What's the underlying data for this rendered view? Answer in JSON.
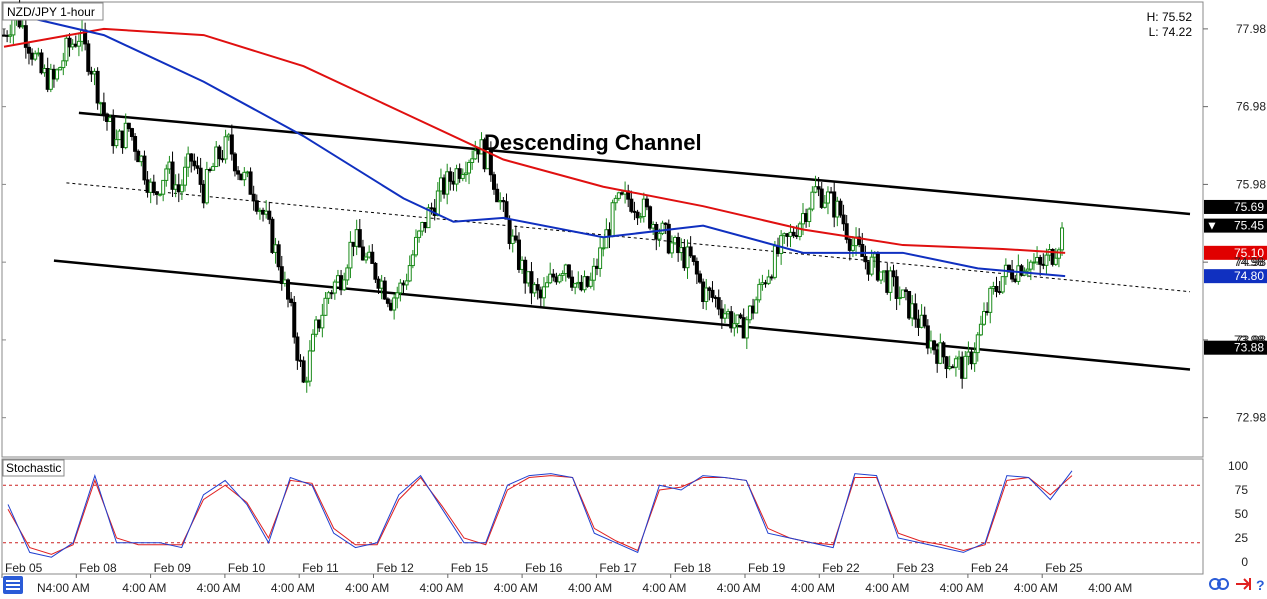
{
  "chart_data": {
    "type": "candlestick",
    "title": "NZD/JPY 1-hour",
    "high_label": "H: 75.52",
    "low_label": "L: 74.22",
    "annotation": "Descending Channel",
    "ylim": [
      72.5,
      78.3
    ],
    "y_ticks": [
      "77.98",
      "76.98",
      "75.98",
      "74.98",
      "73.98",
      "72.98"
    ],
    "x_date_labels": [
      "Feb 05",
      "Feb 08",
      "Feb 09",
      "Feb 10",
      "Feb 11",
      "Feb 12",
      "Feb 15",
      "Feb 16",
      "Feb 17",
      "Feb 18",
      "Feb 19",
      "Feb 22",
      "Feb 23",
      "Feb 24",
      "Feb 25"
    ],
    "x_time_label": "4:00 AM",
    "x_first_time_label": "N4:00 AM",
    "price_series": [
      {
        "x": 0,
        "y": 77.9
      },
      {
        "x": 1,
        "y": 78.2
      },
      {
        "x": 2,
        "y": 77.8
      },
      {
        "x": 3,
        "y": 77.4
      },
      {
        "x": 4,
        "y": 77.3
      },
      {
        "x": 5,
        "y": 77.7
      },
      {
        "x": 6,
        "y": 77.9
      },
      {
        "x": 7,
        "y": 77.5
      },
      {
        "x": 8,
        "y": 76.9
      },
      {
        "x": 9,
        "y": 76.5
      },
      {
        "x": 10,
        "y": 76.7
      },
      {
        "x": 11,
        "y": 76.3
      },
      {
        "x": 12,
        "y": 75.8
      },
      {
        "x": 13,
        "y": 76.2
      },
      {
        "x": 14,
        "y": 75.9
      },
      {
        "x": 15,
        "y": 76.3
      },
      {
        "x": 16,
        "y": 75.9
      },
      {
        "x": 17,
        "y": 76.3
      },
      {
        "x": 18,
        "y": 76.5
      },
      {
        "x": 19,
        "y": 76.1
      },
      {
        "x": 20,
        "y": 75.9
      },
      {
        "x": 21,
        "y": 75.5
      },
      {
        "x": 22,
        "y": 75.0
      },
      {
        "x": 23,
        "y": 74.3
      },
      {
        "x": 24,
        "y": 73.4
      },
      {
        "x": 25,
        "y": 74.1
      },
      {
        "x": 26,
        "y": 74.6
      },
      {
        "x": 27,
        "y": 74.8
      },
      {
        "x": 28,
        "y": 75.3
      },
      {
        "x": 29,
        "y": 75.0
      },
      {
        "x": 30,
        "y": 74.8
      },
      {
        "x": 31,
        "y": 74.5
      },
      {
        "x": 32,
        "y": 74.7
      },
      {
        "x": 33,
        "y": 75.2
      },
      {
        "x": 34,
        "y": 75.6
      },
      {
        "x": 35,
        "y": 75.9
      },
      {
        "x": 36,
        "y": 76.1
      },
      {
        "x": 37,
        "y": 76.3
      },
      {
        "x": 38,
        "y": 76.5
      },
      {
        "x": 39,
        "y": 76.2
      },
      {
        "x": 40,
        "y": 75.6
      },
      {
        "x": 41,
        "y": 75.1
      },
      {
        "x": 42,
        "y": 74.7
      },
      {
        "x": 43,
        "y": 74.5
      },
      {
        "x": 44,
        "y": 74.8
      },
      {
        "x": 45,
        "y": 75.0
      },
      {
        "x": 46,
        "y": 74.6
      },
      {
        "x": 47,
        "y": 74.7
      },
      {
        "x": 48,
        "y": 75.2
      },
      {
        "x": 49,
        "y": 75.7
      },
      {
        "x": 50,
        "y": 75.8
      },
      {
        "x": 51,
        "y": 75.7
      },
      {
        "x": 52,
        "y": 75.5
      },
      {
        "x": 53,
        "y": 75.3
      },
      {
        "x": 54,
        "y": 75.1
      },
      {
        "x": 55,
        "y": 75.0
      },
      {
        "x": 56,
        "y": 74.6
      },
      {
        "x": 57,
        "y": 74.5
      },
      {
        "x": 58,
        "y": 74.3
      },
      {
        "x": 59,
        "y": 74.1
      },
      {
        "x": 60,
        "y": 74.4
      },
      {
        "x": 61,
        "y": 74.8
      },
      {
        "x": 62,
        "y": 75.1
      },
      {
        "x": 63,
        "y": 75.3
      },
      {
        "x": 64,
        "y": 75.6
      },
      {
        "x": 65,
        "y": 75.9
      },
      {
        "x": 66,
        "y": 75.8
      },
      {
        "x": 67,
        "y": 75.6
      },
      {
        "x": 68,
        "y": 75.2
      },
      {
        "x": 69,
        "y": 75.0
      },
      {
        "x": 70,
        "y": 74.9
      },
      {
        "x": 71,
        "y": 74.7
      },
      {
        "x": 72,
        "y": 74.5
      },
      {
        "x": 73,
        "y": 74.3
      },
      {
        "x": 74,
        "y": 74.0
      },
      {
        "x": 75,
        "y": 73.8
      },
      {
        "x": 76,
        "y": 73.7
      },
      {
        "x": 77,
        "y": 73.6
      },
      {
        "x": 78,
        "y": 74.0
      },
      {
        "x": 79,
        "y": 74.5
      },
      {
        "x": 80,
        "y": 74.8
      },
      {
        "x": 81,
        "y": 74.9
      },
      {
        "x": 82,
        "y": 75.0
      },
      {
        "x": 83,
        "y": 74.9
      },
      {
        "x": 84,
        "y": 75.1
      },
      {
        "x": 85,
        "y": 75.45
      }
    ],
    "ma_red": [
      {
        "x": 0,
        "y": 77.75
      },
      {
        "x": 8,
        "y": 77.98
      },
      {
        "x": 16,
        "y": 77.9
      },
      {
        "x": 24,
        "y": 77.5
      },
      {
        "x": 32,
        "y": 76.9
      },
      {
        "x": 40,
        "y": 76.3
      },
      {
        "x": 48,
        "y": 75.95
      },
      {
        "x": 56,
        "y": 75.7
      },
      {
        "x": 64,
        "y": 75.4
      },
      {
        "x": 72,
        "y": 75.2
      },
      {
        "x": 80,
        "y": 75.15
      },
      {
        "x": 85,
        "y": 75.1
      }
    ],
    "ma_blue": [
      {
        "x": 0,
        "y": 78.2
      },
      {
        "x": 8,
        "y": 77.9
      },
      {
        "x": 16,
        "y": 77.3
      },
      {
        "x": 24,
        "y": 76.6
      },
      {
        "x": 32,
        "y": 75.8
      },
      {
        "x": 36,
        "y": 75.5
      },
      {
        "x": 40,
        "y": 75.55
      },
      {
        "x": 48,
        "y": 75.3
      },
      {
        "x": 56,
        "y": 75.45
      },
      {
        "x": 64,
        "y": 75.1
      },
      {
        "x": 72,
        "y": 75.1
      },
      {
        "x": 78,
        "y": 74.9
      },
      {
        "x": 85,
        "y": 74.8
      }
    ],
    "channel_lines": [
      {
        "name": "upper",
        "x0": 6,
        "y0": 76.9,
        "x1": 95,
        "y1": 75.6
      },
      {
        "name": "middle",
        "x0": 5,
        "y0": 76.0,
        "x1": 95,
        "y1": 74.6
      },
      {
        "name": "lower",
        "x0": 4,
        "y0": 75.0,
        "x1": 95,
        "y1": 73.6
      }
    ],
    "price_tags": [
      {
        "label": "75.69",
        "value": 75.69,
        "bg": "#000000"
      },
      {
        "label": "75.45",
        "value": 75.45,
        "bg": "#000000",
        "marker": "▼"
      },
      {
        "label": "75.10",
        "value": 75.1,
        "bg": "#e00000"
      },
      {
        "label": "74.98",
        "value": 74.98,
        "bg": "none"
      },
      {
        "label": "74.80",
        "value": 74.8,
        "bg": "#1030c0"
      },
      {
        "label": "73.98",
        "value": 73.98,
        "bg": "none"
      },
      {
        "label": "73.88",
        "value": 73.88,
        "bg": "#000000"
      }
    ],
    "stochastic": {
      "name": "Stochastic",
      "ylim": [
        0,
        100
      ],
      "y_ticks": [
        "100",
        "75",
        "50",
        "25",
        "0"
      ],
      "levels": [
        80,
        20
      ],
      "k": [
        60,
        10,
        5,
        20,
        90,
        20,
        20,
        20,
        15,
        70,
        85,
        60,
        20,
        88,
        80,
        30,
        15,
        20,
        70,
        90,
        55,
        20,
        20,
        80,
        90,
        92,
        88,
        30,
        20,
        10,
        80,
        75,
        90,
        88,
        85,
        30,
        25,
        20,
        15,
        92,
        90,
        25,
        20,
        15,
        10,
        20,
        90,
        88,
        65,
        95
      ],
      "d": [
        55,
        15,
        8,
        18,
        85,
        25,
        18,
        18,
        18,
        65,
        80,
        62,
        25,
        85,
        82,
        35,
        18,
        18,
        65,
        88,
        58,
        25,
        18,
        75,
        88,
        90,
        88,
        35,
        22,
        12,
        75,
        78,
        88,
        88,
        85,
        35,
        25,
        20,
        18,
        88,
        88,
        30,
        22,
        18,
        12,
        18,
        85,
        88,
        70,
        90
      ]
    },
    "colors": {
      "bull_candle": "#1a8a1a",
      "bear_candle": "#000000",
      "ma_red": "#e01010",
      "ma_blue": "#1030c0",
      "stoch_k": "#2040d0",
      "stoch_d": "#e02020",
      "level_line": "#cc2020"
    }
  },
  "icons": [
    "menu-icon",
    "link-icon",
    "arrow-icon",
    "help-icon"
  ],
  "help_glyph": "?"
}
